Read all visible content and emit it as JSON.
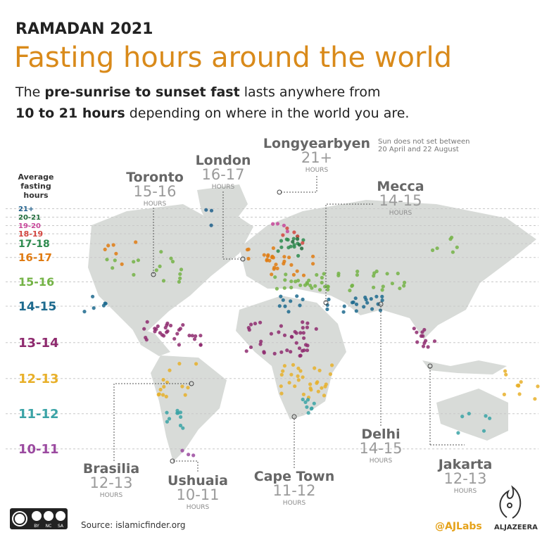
{
  "header": {
    "kicker": "RAMADAN 2021",
    "title": "Fasting hours around the world",
    "subtitle_line1": [
      "The ",
      "pre-sunrise to sunset fast",
      " lasts anywhere from"
    ],
    "subtitle_line2": [
      "10 to 21 hours",
      " depending on where in the world you are."
    ]
  },
  "legend": {
    "title": [
      "Average",
      "fasting",
      "hours"
    ],
    "items": [
      {
        "label": "21+",
        "color": "#1f5f8b"
      },
      {
        "label": "20-21",
        "color": "#1f6b3a"
      },
      {
        "label": "19-20",
        "color": "#c7479a"
      },
      {
        "label": "18-19",
        "color": "#d2453f"
      },
      {
        "label": "17-18",
        "color": "#2e8b4f"
      },
      {
        "label": "16-17",
        "color": "#e07b12"
      },
      {
        "label": "15-16",
        "color": "#74b346"
      },
      {
        "label": "14-15",
        "color": "#1d6a8e"
      },
      {
        "label": "13-14",
        "color": "#8e2a6e"
      },
      {
        "label": "12-13",
        "color": "#e8b02a"
      },
      {
        "label": "11-12",
        "color": "#3aa3a6"
      },
      {
        "label": "10-11",
        "color": "#9b4aa0"
      }
    ]
  },
  "cities": [
    {
      "name": "Toronto",
      "hours": "15-16",
      "unit": "HOURS"
    },
    {
      "name": "London",
      "hours": "16-17",
      "unit": "HOURS"
    },
    {
      "name": "Longyearbyen",
      "hours": "21+",
      "unit": "HOURS",
      "note": [
        "Sun does not set between",
        "20 April and 22 August"
      ]
    },
    {
      "name": "Mecca",
      "hours": "14-15",
      "unit": "HOURS"
    },
    {
      "name": "Delhi",
      "hours": "14-15",
      "unit": "HOURS"
    },
    {
      "name": "Jakarta",
      "hours": "12-13",
      "unit": "HOURS"
    },
    {
      "name": "Brasilia",
      "hours": "12-13",
      "unit": "HOURS"
    },
    {
      "name": "Ushuaia",
      "hours": "10-11",
      "unit": "HOURS"
    },
    {
      "name": "Cape Town",
      "hours": "11-12",
      "unit": "HOURS"
    }
  ],
  "footer": {
    "license": [
      "BY",
      "NC",
      "SA"
    ],
    "source": "Source: islamicfinder.org",
    "handle": "@AJLabs",
    "brand": "ALJAZEERA"
  }
}
